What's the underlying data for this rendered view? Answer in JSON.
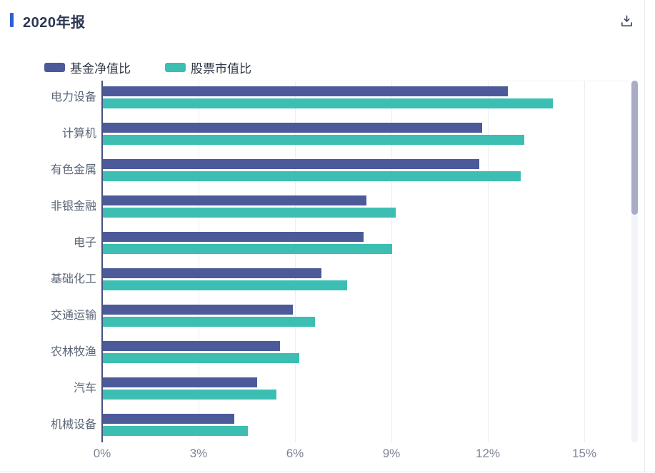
{
  "header": {
    "title": "2020年报",
    "download_icon": "tray-arrow-down"
  },
  "legend": {
    "items": [
      {
        "label": "基金净值比"
      },
      {
        "label": "股票市值比"
      }
    ]
  },
  "chart_data": {
    "type": "bar",
    "orientation": "horizontal",
    "title": "2020年报",
    "categories": [
      "电力设备",
      "计算机",
      "有色金属",
      "非银金融",
      "电子",
      "基础化工",
      "交通运输",
      "农林牧渔",
      "汽车",
      "机械设备"
    ],
    "series": [
      {
        "name": "基金净值比",
        "color": "#4C5A9A",
        "values": [
          12.6,
          11.8,
          11.7,
          8.2,
          8.1,
          6.8,
          5.9,
          5.5,
          4.8,
          4.1
        ]
      },
      {
        "name": "股票市值比",
        "color": "#3CBEB3",
        "values": [
          14.0,
          13.1,
          13.0,
          9.1,
          9.0,
          7.6,
          6.6,
          6.1,
          5.4,
          4.5
        ]
      }
    ],
    "value_unit": "%",
    "x_ticks": [
      "0%",
      "3%",
      "6%",
      "9%",
      "12%",
      "15%"
    ],
    "x_tick_values": [
      0,
      3,
      6,
      9,
      12,
      15
    ],
    "xlim": [
      0,
      16.4
    ],
    "grid": true,
    "legend_position": "top-left"
  },
  "scrollbar": {
    "visible": true
  },
  "colors": {
    "accent_bar": "#2B5FD7",
    "title_text": "#2C3852",
    "legend_text": "#303644",
    "category_label": "#5C6677",
    "tick_label": "#7D8495",
    "axis_line": "#47517E",
    "gridline": "#ECEEF3",
    "plot_topline": "#F1F2F6",
    "scrollbar_thumb": "#A9ACC7",
    "scrollbar_track": "#F3F4F9",
    "panel_border": "#E9EAF0",
    "download_icon": "#3D4463"
  }
}
